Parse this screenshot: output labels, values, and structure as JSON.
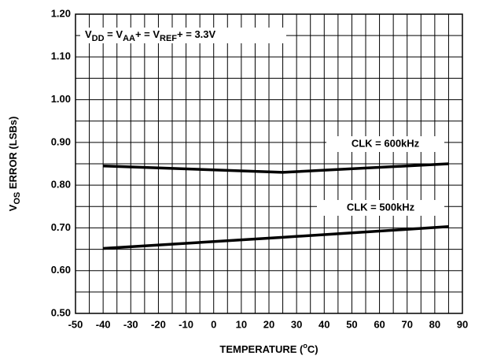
{
  "chart_data": {
    "type": "line",
    "annotation": [
      {
        "text": "V",
        "sub": false
      },
      {
        "text": "DD",
        "sub": true
      },
      {
        "text": " = V",
        "sub": false
      },
      {
        "text": "AA",
        "sub": true
      },
      {
        "text": "+ = V",
        "sub": false
      },
      {
        "text": "REF",
        "sub": true
      },
      {
        "text": "+ = 3.3V",
        "sub": false
      }
    ],
    "ylabel": [
      {
        "text": "V",
        "sub": false
      },
      {
        "text": "OS",
        "sub": true
      },
      {
        "text": " ERROR (LSBs)",
        "sub": false
      }
    ],
    "xlabel": [
      {
        "text": "TEMPERATURE (",
        "sup": false
      },
      {
        "text": "o",
        "sup": true
      },
      {
        "text": "C)",
        "sup": false
      }
    ],
    "x": [
      -40,
      25,
      85
    ],
    "series": [
      {
        "name": "CLK = 600kHz",
        "color": "#000000",
        "values": [
          0.845,
          0.83,
          0.85
        ]
      },
      {
        "name": "CLK = 500kHz",
        "color": "#000000",
        "values": [
          0.652,
          0.678,
          0.703
        ]
      }
    ],
    "xlim": [
      -50,
      90
    ],
    "xticks": [
      -50,
      -40,
      -30,
      -20,
      -10,
      0,
      10,
      20,
      30,
      40,
      50,
      60,
      70,
      80,
      90
    ],
    "ylim": [
      0.5,
      1.2
    ],
    "yticks": [
      {
        "value": 0.5,
        "label": "0.50"
      },
      {
        "value": 0.6,
        "label": "0.60"
      },
      {
        "value": 0.7,
        "label": "0.70"
      },
      {
        "value": 0.8,
        "label": "0.80"
      },
      {
        "value": 0.9,
        "label": "0.90"
      },
      {
        "value": 1.0,
        "label": "1.00"
      },
      {
        "value": 1.1,
        "label": "1.10"
      },
      {
        "value": 1.2,
        "label": "1.20"
      }
    ],
    "xgrid": [
      -50,
      -45,
      -40,
      -35,
      -30,
      -25,
      -20,
      -15,
      -10,
      -5,
      0,
      5,
      10,
      15,
      20,
      25,
      30,
      35,
      40,
      45,
      50,
      55,
      60,
      65,
      70,
      75,
      80,
      85,
      90
    ],
    "ygrid": [
      0.5,
      0.55,
      0.6,
      0.65,
      0.7,
      0.75,
      0.8,
      0.85,
      0.9,
      0.95,
      1.0,
      1.05,
      1.1,
      1.15,
      1.2
    ],
    "grid": true
  }
}
